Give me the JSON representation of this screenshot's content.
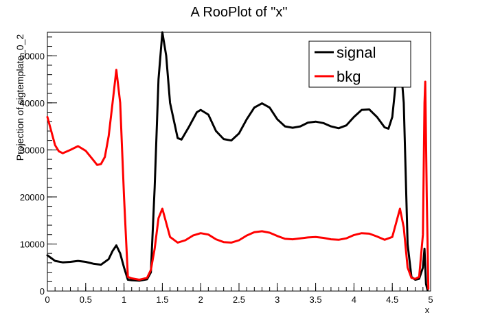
{
  "chart_data": {
    "type": "line",
    "title": "A RooPlot of \"x\"",
    "xlabel": "x",
    "ylabel": "Projection of sigtemplate_0_2",
    "xlim": [
      0,
      5
    ],
    "ylim": [
      0,
      55000
    ],
    "x_ticks": [
      {
        "value": 0,
        "label": "0"
      },
      {
        "value": 0.5,
        "label": "0.5"
      },
      {
        "value": 1,
        "label": "1"
      },
      {
        "value": 1.5,
        "label": "1.5"
      },
      {
        "value": 2,
        "label": "2"
      },
      {
        "value": 2.5,
        "label": "2.5"
      },
      {
        "value": 3,
        "label": "3"
      },
      {
        "value": 3.5,
        "label": "3.5"
      },
      {
        "value": 4,
        "label": "4"
      },
      {
        "value": 4.5,
        "label": "4.5"
      },
      {
        "value": 5,
        "label": "5"
      }
    ],
    "y_ticks": [
      {
        "value": 0,
        "label": "0"
      },
      {
        "value": 10000,
        "label": "10000"
      },
      {
        "value": 20000,
        "label": "20000"
      },
      {
        "value": 30000,
        "label": "30000"
      },
      {
        "value": 40000,
        "label": "40000"
      },
      {
        "value": 50000,
        "label": "50000"
      }
    ],
    "legend_position": "top-right",
    "series": [
      {
        "name": "signal",
        "color": "#000000",
        "points": [
          [
            0.0,
            7600
          ],
          [
            0.05,
            7000
          ],
          [
            0.1,
            6400
          ],
          [
            0.2,
            6100
          ],
          [
            0.3,
            6200
          ],
          [
            0.4,
            6400
          ],
          [
            0.5,
            6200
          ],
          [
            0.6,
            5800
          ],
          [
            0.7,
            5600
          ],
          [
            0.8,
            6800
          ],
          [
            0.85,
            8500
          ],
          [
            0.9,
            9700
          ],
          [
            0.95,
            8000
          ],
          [
            1.0,
            5000
          ],
          [
            1.05,
            2400
          ],
          [
            1.1,
            2300
          ],
          [
            1.2,
            2200
          ],
          [
            1.3,
            2500
          ],
          [
            1.35,
            4000
          ],
          [
            1.4,
            22000
          ],
          [
            1.45,
            45000
          ],
          [
            1.5,
            55000
          ],
          [
            1.55,
            50000
          ],
          [
            1.6,
            40000
          ],
          [
            1.7,
            32500
          ],
          [
            1.75,
            32200
          ],
          [
            1.85,
            35000
          ],
          [
            1.95,
            38000
          ],
          [
            2.0,
            38500
          ],
          [
            2.1,
            37500
          ],
          [
            2.2,
            34000
          ],
          [
            2.3,
            32300
          ],
          [
            2.4,
            32000
          ],
          [
            2.5,
            33500
          ],
          [
            2.6,
            36500
          ],
          [
            2.7,
            39000
          ],
          [
            2.8,
            39900
          ],
          [
            2.9,
            39000
          ],
          [
            3.0,
            36500
          ],
          [
            3.1,
            35000
          ],
          [
            3.2,
            34700
          ],
          [
            3.3,
            35000
          ],
          [
            3.4,
            35800
          ],
          [
            3.5,
            36000
          ],
          [
            3.6,
            35700
          ],
          [
            3.7,
            35000
          ],
          [
            3.8,
            34600
          ],
          [
            3.9,
            35200
          ],
          [
            4.0,
            37000
          ],
          [
            4.1,
            38500
          ],
          [
            4.2,
            38600
          ],
          [
            4.3,
            37000
          ],
          [
            4.4,
            34800
          ],
          [
            4.45,
            34500
          ],
          [
            4.5,
            37000
          ],
          [
            4.55,
            45000
          ],
          [
            4.6,
            50000
          ],
          [
            4.65,
            40000
          ],
          [
            4.7,
            10000
          ],
          [
            4.75,
            3000
          ],
          [
            4.8,
            2400
          ],
          [
            4.85,
            2600
          ],
          [
            4.9,
            5000
          ],
          [
            4.92,
            9000
          ],
          [
            4.94,
            1500
          ],
          [
            4.96,
            200
          ]
        ]
      },
      {
        "name": "bkg",
        "color": "#ff0000",
        "points": [
          [
            0.0,
            37000
          ],
          [
            0.05,
            34000
          ],
          [
            0.1,
            31000
          ],
          [
            0.15,
            29700
          ],
          [
            0.2,
            29300
          ],
          [
            0.3,
            30000
          ],
          [
            0.4,
            30800
          ],
          [
            0.5,
            29800
          ],
          [
            0.6,
            27800
          ],
          [
            0.65,
            26800
          ],
          [
            0.7,
            27000
          ],
          [
            0.75,
            28500
          ],
          [
            0.8,
            33000
          ],
          [
            0.85,
            40000
          ],
          [
            0.9,
            47000
          ],
          [
            0.95,
            40000
          ],
          [
            1.0,
            20000
          ],
          [
            1.05,
            3000
          ],
          [
            1.1,
            2700
          ],
          [
            1.2,
            2400
          ],
          [
            1.3,
            2800
          ],
          [
            1.35,
            4500
          ],
          [
            1.4,
            9000
          ],
          [
            1.45,
            15500
          ],
          [
            1.5,
            17500
          ],
          [
            1.55,
            14500
          ],
          [
            1.6,
            11500
          ],
          [
            1.7,
            10300
          ],
          [
            1.8,
            10800
          ],
          [
            1.9,
            11800
          ],
          [
            2.0,
            12300
          ],
          [
            2.1,
            12000
          ],
          [
            2.2,
            11000
          ],
          [
            2.3,
            10400
          ],
          [
            2.4,
            10300
          ],
          [
            2.5,
            10800
          ],
          [
            2.6,
            11800
          ],
          [
            2.7,
            12500
          ],
          [
            2.8,
            12700
          ],
          [
            2.9,
            12400
          ],
          [
            3.0,
            11700
          ],
          [
            3.1,
            11100
          ],
          [
            3.2,
            11000
          ],
          [
            3.3,
            11200
          ],
          [
            3.4,
            11400
          ],
          [
            3.5,
            11500
          ],
          [
            3.6,
            11300
          ],
          [
            3.7,
            11000
          ],
          [
            3.8,
            10900
          ],
          [
            3.9,
            11200
          ],
          [
            4.0,
            11900
          ],
          [
            4.1,
            12300
          ],
          [
            4.2,
            12200
          ],
          [
            4.3,
            11600
          ],
          [
            4.4,
            10900
          ],
          [
            4.5,
            11500
          ],
          [
            4.55,
            14500
          ],
          [
            4.6,
            17500
          ],
          [
            4.65,
            13500
          ],
          [
            4.7,
            5000
          ],
          [
            4.75,
            2800
          ],
          [
            4.8,
            2600
          ],
          [
            4.85,
            3000
          ],
          [
            4.9,
            12000
          ],
          [
            4.92,
            40000
          ],
          [
            4.93,
            44500
          ],
          [
            4.95,
            20000
          ],
          [
            4.97,
            500
          ]
        ]
      }
    ]
  }
}
